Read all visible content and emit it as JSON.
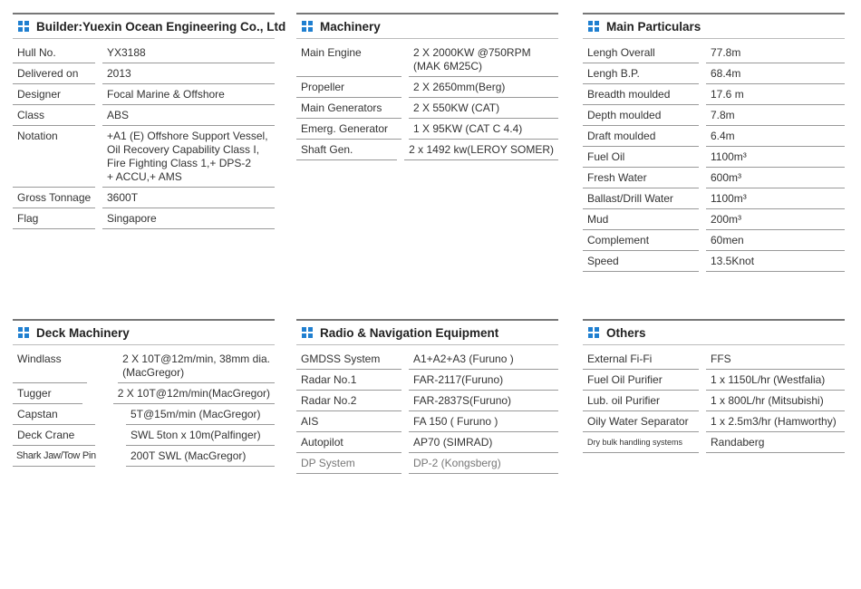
{
  "panels": [
    {
      "title": "Builder:Yuexin Ocean Engineering Co., Ltd",
      "rows": [
        {
          "label": "Hull No.",
          "lines": [
            "YX3188"
          ]
        },
        {
          "label": "Delivered on",
          "lines": [
            "2013"
          ]
        },
        {
          "label": "Designer",
          "lines": [
            "Focal Marine & Offshore"
          ]
        },
        {
          "label": "Class",
          "lines": [
            "ABS"
          ]
        },
        {
          "label": "Notation",
          "lines": [
            "+A1 (E) Offshore Support Vessel,",
            "Oil Recovery Capability Class I,",
            "Fire Fighting Class 1,+ DPS-2",
            "+ ACCU,+ AMS"
          ]
        },
        {
          "label": "Gross Tonnage",
          "lines": [
            "3600T"
          ]
        },
        {
          "label": "Flag",
          "lines": [
            "Singapore"
          ]
        }
      ]
    },
    {
      "title": "Machinery",
      "rows": [
        {
          "label": "Main Engine",
          "lines": [
            "2 X 2000KW  @750RPM",
            "(MAK 6M25C)"
          ]
        },
        {
          "label": "Propeller",
          "lines": [
            "2 X 2650mm(Berg)"
          ]
        },
        {
          "label": "Main Generators",
          "lines": [
            "2 X 550KW (CAT)"
          ]
        },
        {
          "label": "Emerg. Generator",
          "lines": [
            "1 X 95KW (CAT C 4.4)"
          ]
        },
        {
          "label": "Shaft Gen.",
          "lines": [
            "2 x 1492 kw(LEROY SOMER)"
          ]
        }
      ]
    },
    {
      "title": "Main Particulars",
      "rows": [
        {
          "label": "Lengh Overall",
          "lines": [
            "77.8m"
          ]
        },
        {
          "label": "Lengh B.P.",
          "lines": [
            "68.4m"
          ]
        },
        {
          "label": "Breadth moulded",
          "lines": [
            "17.6 m"
          ]
        },
        {
          "label": "Depth moulded",
          "lines": [
            "7.8m"
          ]
        },
        {
          "label": "Draft moulded",
          "lines": [
            "6.4m"
          ]
        },
        {
          "label": "Fuel Oil",
          "lines": [
            "1100m³"
          ]
        },
        {
          "label": "Fresh Water",
          "lines": [
            "600m³"
          ]
        },
        {
          "label": "Ballast/Drill Water",
          "lines": [
            "1100m³"
          ]
        },
        {
          "label": "Mud",
          "lines": [
            "200m³"
          ]
        },
        {
          "label": "Complement",
          "lines": [
            "60men"
          ]
        },
        {
          "label": "Speed",
          "lines": [
            "13.5Knot"
          ]
        }
      ]
    },
    {
      "title": "Deck Machinery",
      "rows": [
        {
          "label": "Windlass",
          "lines": [
            "2 X 10T@12m/min, 38mm dia.",
            "(MacGregor)"
          ]
        },
        {
          "label": "Tugger",
          "lines": [
            "2 X 10T@12m/min(MacGregor)"
          ]
        },
        {
          "label": "Capstan",
          "lines": [
            "5T@15m/min (MacGregor)"
          ]
        },
        {
          "label": "Deck Crane",
          "lines": [
            "SWL 5ton x 10m(Palfinger)"
          ]
        },
        {
          "label": "Shark Jaw/Tow Pin",
          "lines": [
            "200T SWL (MacGregor)"
          ]
        }
      ]
    },
    {
      "title": "Radio & Navigation Equipment",
      "rows": [
        {
          "label": "GMDSS System",
          "lines": [
            "A1+A2+A3 (Furuno )"
          ]
        },
        {
          "label": "Radar No.1",
          "lines": [
            "FAR-2117(Furuno)"
          ]
        },
        {
          "label": "Radar No.2",
          "lines": [
            "FAR-2837S(Furuno)"
          ]
        },
        {
          "label": "AIS",
          "lines": [
            "FA 150 ( Furuno )"
          ]
        },
        {
          "label": "Autopilot",
          "lines": [
            "AP70 (SIMRAD)"
          ]
        },
        {
          "label": "DP System",
          "lines": [
            "DP-2 (Kongsberg)"
          ]
        }
      ]
    },
    {
      "title": "Others",
      "rows": [
        {
          "label": "External Fi-Fi",
          "lines": [
            "FFS"
          ]
        },
        {
          "label": "Fuel Oil Purifier",
          "lines": [
            "1 x 1150L/hr (Westfalia)"
          ]
        },
        {
          "label": "Lub. oil Purifier",
          "lines": [
            "1 x 800L/hr (Mitsubishi)"
          ]
        },
        {
          "label": "Oily Water Separator",
          "lines": [
            "1 x 2.5m3/hr (Hamworthy)"
          ]
        },
        {
          "label": "Dry bulk handling systems",
          "lines": [
            "Randaberg"
          ]
        }
      ]
    }
  ]
}
